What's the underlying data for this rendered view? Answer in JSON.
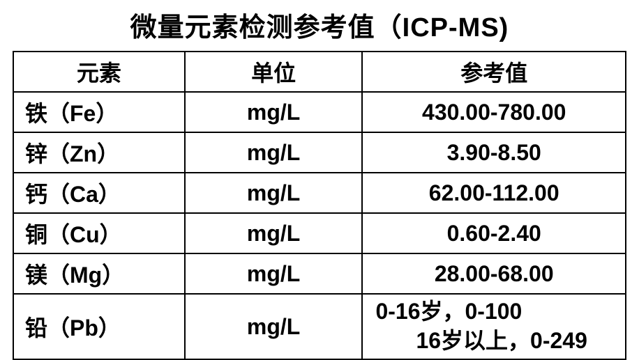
{
  "title": "微量元素检测参考值（ICP-MS)",
  "columns": [
    "元素",
    "单位",
    "参考值"
  ],
  "rows": [
    {
      "element": "铁（Fe）",
      "unit": "mg/L",
      "ref": "430.00-780.00"
    },
    {
      "element": "锌（Zn）",
      "unit": "mg/L",
      "ref": "3.90-8.50"
    },
    {
      "element": "钙（Ca）",
      "unit": "mg/L",
      "ref": "62.00-112.00"
    },
    {
      "element": "铜（Cu）",
      "unit": "mg/L",
      "ref": "0.60-2.40"
    },
    {
      "element": "镁（Mg）",
      "unit": "mg/L",
      "ref": "28.00-68.00"
    }
  ],
  "last_row": {
    "element": "铅（Pb）",
    "unit": "mg/L",
    "ref_line1": "0-16岁，0-100",
    "ref_line2": "16岁以上，0-249"
  },
  "styling": {
    "background_color": "#ffffff",
    "text_color": "#000000",
    "border_color": "#000000",
    "title_fontsize": 38,
    "cell_fontsize": 32,
    "font_weight": "bold",
    "border_width": 2
  }
}
